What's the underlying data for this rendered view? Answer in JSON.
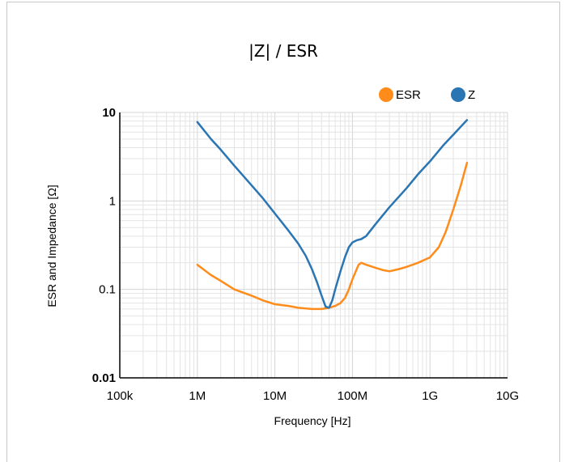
{
  "chart_data": {
    "type": "line",
    "title": "|Z| / ESR",
    "xlabel": "Frequency [Hz]",
    "ylabel": "ESR and Impedance [Ω]",
    "x_scale": "log",
    "y_scale": "log",
    "xlim": [
      100000,
      10000000000
    ],
    "ylim": [
      0.01,
      10
    ],
    "x_ticks": [
      {
        "value": 100000,
        "label": "100k"
      },
      {
        "value": 1000000,
        "label": "1M"
      },
      {
        "value": 10000000,
        "label": "10M"
      },
      {
        "value": 100000000,
        "label": "100M"
      },
      {
        "value": 1000000000,
        "label": "1G"
      },
      {
        "value": 10000000000,
        "label": "10G"
      }
    ],
    "y_ticks": [
      {
        "value": 0.01,
        "label": "0.01",
        "bold": true
      },
      {
        "value": 0.1,
        "label": "0.1",
        "bold": false
      },
      {
        "value": 1,
        "label": "1",
        "bold": false
      },
      {
        "value": 10,
        "label": "10",
        "bold": true
      }
    ],
    "grid": true,
    "legend_position": "top-right",
    "series": [
      {
        "name": "ESR",
        "color": "#ff8c1a",
        "x": [
          1000000,
          1500000,
          2000000,
          3000000,
          5000000,
          7000000,
          10000000,
          15000000,
          20000000,
          30000000,
          40000000,
          50000000,
          60000000,
          70000000,
          80000000,
          90000000,
          100000000,
          120000000,
          130000000,
          150000000,
          200000000,
          250000000,
          300000000,
          400000000,
          500000000,
          700000000,
          1000000000,
          1300000000,
          1600000000,
          2000000000,
          2500000000,
          3000000000
        ],
        "values": [
          0.19,
          0.145,
          0.125,
          0.1,
          0.085,
          0.075,
          0.068,
          0.065,
          0.062,
          0.06,
          0.06,
          0.062,
          0.065,
          0.07,
          0.08,
          0.1,
          0.13,
          0.19,
          0.2,
          0.19,
          0.175,
          0.165,
          0.16,
          0.17,
          0.18,
          0.2,
          0.23,
          0.3,
          0.45,
          0.8,
          1.5,
          2.7
        ]
      },
      {
        "name": "Z",
        "color": "#2a75b3",
        "x": [
          1000000,
          1500000,
          2000000,
          3000000,
          5000000,
          7000000,
          10000000,
          15000000,
          20000000,
          25000000,
          30000000,
          35000000,
          40000000,
          45000000,
          50000000,
          55000000,
          60000000,
          70000000,
          80000000,
          90000000,
          100000000,
          115000000,
          130000000,
          150000000,
          200000000,
          300000000,
          500000000,
          700000000,
          1000000000,
          1500000000,
          2000000000,
          3000000000
        ],
        "values": [
          7.8,
          5.0,
          3.8,
          2.5,
          1.5,
          1.07,
          0.72,
          0.46,
          0.33,
          0.24,
          0.17,
          0.12,
          0.085,
          0.064,
          0.062,
          0.075,
          0.1,
          0.16,
          0.23,
          0.3,
          0.34,
          0.36,
          0.37,
          0.4,
          0.55,
          0.85,
          1.4,
          2.0,
          2.8,
          4.3,
          5.6,
          8.2
        ]
      }
    ]
  }
}
